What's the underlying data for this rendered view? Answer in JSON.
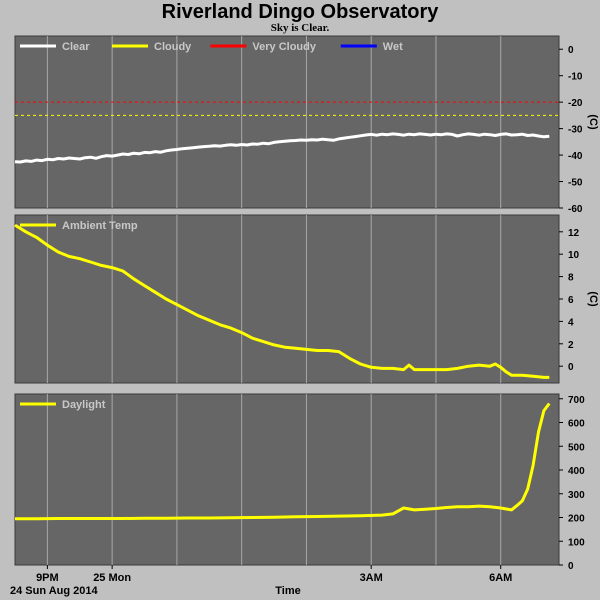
{
  "header": {
    "title": "Riverland Dingo Observatory",
    "subtitle": "Sky is Clear."
  },
  "footer": {
    "date_label": "24 Sun Aug 2014",
    "x_axis_title": "Time",
    "x_ticks": [
      "9PM",
      "25 Mon",
      "3AM",
      "6AM"
    ]
  },
  "colors": {
    "background": "#c0c0c0",
    "plot_bg": "#666666",
    "grid": "#a8a8a8",
    "clear": "#ffffff",
    "cloudy": "#ffff00",
    "very_cloudy": "#ff0000",
    "wet": "#0000ff"
  },
  "chart_data": [
    {
      "type": "line",
      "legend": [
        {
          "label": "Clear",
          "color": "#ffffff"
        },
        {
          "label": "Cloudy",
          "color": "#ffff00"
        },
        {
          "label": "Very Cloudy",
          "color": "#ff0000"
        },
        {
          "label": "Wet",
          "color": "#0000ff"
        }
      ],
      "ylabel": "(C)",
      "ylim": [
        -60,
        5
      ],
      "yticks": [
        0,
        -10,
        -20,
        -30,
        -40,
        -50,
        -60
      ],
      "thresholds": [
        {
          "name": "Very Cloudy",
          "value": -20,
          "color": "#ff0000"
        },
        {
          "name": "Cloudy",
          "value": -25,
          "color": "#ffff00"
        }
      ],
      "series": [
        {
          "name": "Clear",
          "color": "#ffffff",
          "x": [
            18.0,
            18.5,
            19.0,
            19.5,
            20.0,
            20.5,
            21.0,
            21.5,
            22.0,
            22.5,
            23.0,
            23.5,
            24.0,
            24.5,
            25.0,
            25.5,
            26.0,
            26.5,
            27.0,
            27.5,
            28.0,
            28.5,
            29.0,
            29.5,
            30.0,
            30.5,
            31.0,
            31.5,
            32.0,
            32.5,
            33.0,
            33.5,
            34.0,
            34.5,
            35.0,
            35.5,
            36.0,
            36.5,
            37.0,
            37.5,
            38.0,
            38.5,
            39.0,
            39.5,
            40.0,
            40.5,
            41.0,
            41.5,
            42.0,
            42.5,
            43.0,
            43.5,
            44.0,
            44.5,
            45.0,
            45.5,
            46.0,
            46.5,
            47.0,
            47.5,
            48.0,
            48.5,
            49.0,
            49.5,
            50.0,
            50.5,
            51.0,
            51.5,
            52.0,
            52.5,
            53.0,
            53.5,
            54.0,
            54.5,
            55.0,
            55.5,
            56.0,
            56.5,
            57.0,
            57.5,
            58.0,
            58.5,
            59.0,
            59.5,
            60.0,
            60.5,
            61.0,
            61.5,
            62.0,
            62.5,
            63.0,
            63.5,
            64.0,
            64.5,
            65.0,
            65.5,
            66.0,
            66.5,
            67.0,
            67.5
          ],
          "y": [
            -42.5,
            -42.6,
            -42.2,
            -42.4,
            -41.9,
            -42.1,
            -41.6,
            -41.8,
            -41.3,
            -41.5,
            -41.1,
            -41.3,
            -41.5,
            -41.0,
            -40.8,
            -41.2,
            -40.6,
            -40.2,
            -40.4,
            -40.0,
            -39.6,
            -39.8,
            -39.3,
            -39.5,
            -39.0,
            -39.1,
            -38.7,
            -38.9,
            -38.4,
            -38.1,
            -37.9,
            -37.6,
            -37.4,
            -37.2,
            -37.0,
            -36.8,
            -36.7,
            -36.5,
            -36.6,
            -36.3,
            -36.1,
            -36.3,
            -36.0,
            -36.2,
            -35.8,
            -35.9,
            -35.5,
            -35.7,
            -35.2,
            -35.0,
            -34.8,
            -34.6,
            -34.5,
            -34.3,
            -34.4,
            -34.2,
            -34.3,
            -34.0,
            -34.2,
            -34.4,
            -33.9,
            -33.6,
            -33.3,
            -33.0,
            -32.7,
            -32.4,
            -32.2,
            -32.5,
            -32.1,
            -32.3,
            -32.0,
            -32.2,
            -32.5,
            -32.1,
            -32.3,
            -32.0,
            -32.2,
            -32.4,
            -32.1,
            -32.3,
            -32.0,
            -32.2,
            -32.8,
            -32.3,
            -32.0,
            -32.2,
            -32.5,
            -32.1,
            -32.3,
            -32.6,
            -32.2,
            -32.0,
            -32.4,
            -32.3,
            -32.1,
            -32.6,
            -32.4,
            -32.8,
            -33.1,
            -32.9
          ]
        }
      ]
    },
    {
      "type": "line",
      "legend": [
        {
          "label": "Ambient Temp",
          "color": "#ffff00"
        }
      ],
      "ylabel": "(C)",
      "ylim": [
        -1.5,
        13.5
      ],
      "yticks": [
        12,
        10,
        8,
        6,
        4,
        2,
        0
      ],
      "series": [
        {
          "name": "Ambient Temp",
          "color": "#ffff00",
          "x": [
            18.0,
            19.0,
            20.0,
            21.0,
            22.0,
            23.0,
            24.0,
            25.0,
            26.0,
            27.0,
            28.0,
            29.0,
            30.0,
            31.0,
            32.0,
            33.0,
            34.0,
            35.0,
            36.0,
            37.0,
            38.0,
            39.0,
            40.0,
            41.0,
            42.0,
            43.0,
            44.0,
            45.0,
            46.0,
            47.0,
            48.0,
            49.0,
            50.0,
            51.0,
            52.0,
            53.0,
            54.0,
            54.5,
            55.0,
            56.0,
            57.0,
            57.5,
            58.0,
            59.0,
            60.0,
            61.0,
            62.0,
            62.5,
            63.0,
            63.5,
            64.0,
            65.0,
            66.0,
            67.0,
            67.5
          ],
          "y": [
            12.6,
            12.0,
            11.5,
            10.8,
            10.2,
            9.8,
            9.6,
            9.3,
            9.0,
            8.8,
            8.5,
            7.8,
            7.2,
            6.6,
            6.0,
            5.5,
            5.0,
            4.5,
            4.1,
            3.7,
            3.4,
            3.0,
            2.5,
            2.2,
            1.9,
            1.7,
            1.6,
            1.5,
            1.4,
            1.4,
            1.3,
            0.7,
            0.2,
            -0.1,
            -0.2,
            -0.2,
            -0.3,
            0.1,
            -0.3,
            -0.3,
            -0.3,
            -0.3,
            -0.3,
            -0.2,
            0.0,
            0.1,
            0.0,
            0.2,
            -0.1,
            -0.5,
            -0.8,
            -0.8,
            -0.9,
            -1.0,
            -1.0
          ]
        }
      ]
    },
    {
      "type": "line",
      "legend": [
        {
          "label": "Daylight",
          "color": "#ffff00"
        }
      ],
      "ylabel": "",
      "ylim": [
        0,
        720
      ],
      "yticks": [
        700,
        600,
        500,
        400,
        300,
        200,
        100,
        0
      ],
      "series": [
        {
          "name": "Daylight",
          "color": "#ffff00",
          "x": [
            18.0,
            20.0,
            22.0,
            24.0,
            26.0,
            28.0,
            30.0,
            32.0,
            34.0,
            36.0,
            38.0,
            40.0,
            42.0,
            44.0,
            46.0,
            48.0,
            50.0,
            52.0,
            53.0,
            54.0,
            55.0,
            56.0,
            57.0,
            58.0,
            59.0,
            60.0,
            61.0,
            62.0,
            63.0,
            64.0,
            64.5,
            65.0,
            65.5,
            66.0,
            66.5,
            67.0,
            67.5
          ],
          "y": [
            195,
            195,
            196,
            196,
            196,
            196,
            197,
            197,
            198,
            198,
            199,
            200,
            201,
            203,
            204,
            206,
            207,
            210,
            215,
            240,
            232,
            235,
            238,
            242,
            245,
            245,
            248,
            245,
            240,
            232,
            250,
            270,
            320,
            420,
            560,
            650,
            680
          ]
        }
      ]
    }
  ]
}
